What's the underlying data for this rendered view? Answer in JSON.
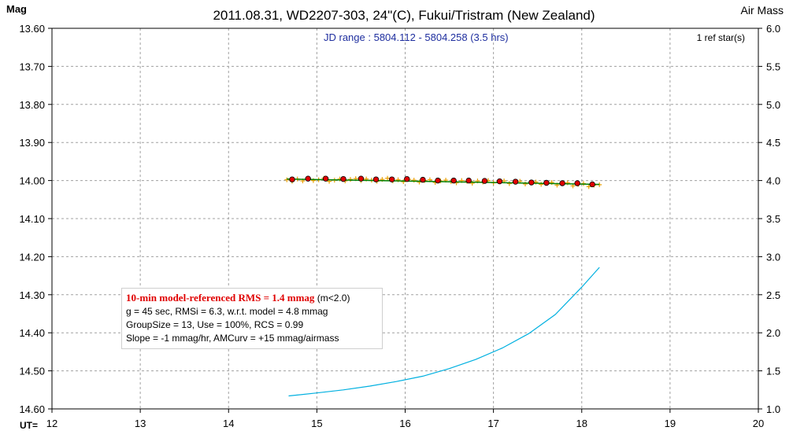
{
  "chart_data": {
    "type": "scatter",
    "title": "2011.08.31, WD2207-303, 24\"(C), Fukui/Tristram (New Zealand)",
    "ylabel": "Mag",
    "y2label": "Air Mass",
    "xlabel": "UT=",
    "subtitle": "JD range : 5804.112 - 5804.258 (3.5 hrs)",
    "ref_stars": "1 ref star(s)",
    "xlim": [
      12,
      20
    ],
    "ylim": [
      14.6,
      13.6
    ],
    "y2lim": [
      1.0,
      6.0
    ],
    "x_ticks": [
      "12",
      "13",
      "14",
      "15",
      "16",
      "17",
      "18",
      "19",
      "20"
    ],
    "y_ticks": [
      "13.60",
      "13.70",
      "13.80",
      "13.90",
      "14.00",
      "14.10",
      "14.20",
      "14.30",
      "14.40",
      "14.50",
      "14.60"
    ],
    "y2_ticks": [
      "6.0",
      "5.5",
      "5.0",
      "4.5",
      "4.0",
      "3.5",
      "3.0",
      "2.5",
      "2.0",
      "1.5",
      "1.0"
    ],
    "grid": true,
    "colors": {
      "raw_points": "#e8a000",
      "binned_points": "#e00000",
      "model_line": "#008000",
      "airmass_curve": "#00b0e0",
      "grid": "#a0a0a0",
      "subtitle": "#00008b"
    },
    "series": [
      {
        "role": "raw",
        "x": [
          14.66,
          14.72,
          14.78,
          14.84,
          14.9,
          14.96,
          15.02,
          15.08,
          15.14,
          15.2,
          15.26,
          15.32,
          15.38,
          15.44,
          15.5,
          15.56,
          15.62,
          15.68,
          15.74,
          15.8,
          15.86,
          15.92,
          15.98,
          16.04,
          16.1,
          16.16,
          16.22,
          16.28,
          16.34,
          16.4,
          16.46,
          16.52,
          16.58,
          16.64,
          16.7,
          16.76,
          16.82,
          16.88,
          16.94,
          17.0,
          17.06,
          17.12,
          17.18,
          17.24,
          17.3,
          17.36,
          17.42,
          17.48,
          17.54,
          17.6,
          17.66,
          17.72,
          17.78,
          17.84,
          17.9,
          17.96,
          18.02,
          18.08,
          18.14,
          18.2
        ],
        "y": [
          13.998,
          14.002,
          13.996,
          14.001,
          13.995,
          14.0,
          13.998,
          13.994,
          14.002,
          13.999,
          13.996,
          14.001,
          13.997,
          13.995,
          14.0,
          13.996,
          13.999,
          14.002,
          13.997,
          13.994,
          14.001,
          13.998,
          14.003,
          13.997,
          13.999,
          14.004,
          14.0,
          13.998,
          14.005,
          14.001,
          13.999,
          14.003,
          14.006,
          14.0,
          14.002,
          14.007,
          14.001,
          14.004,
          14.0,
          14.006,
          14.003,
          14.001,
          14.008,
          14.004,
          14.002,
          14.009,
          14.006,
          14.004,
          14.01,
          14.007,
          14.005,
          14.012,
          14.008,
          14.006,
          14.014,
          14.01,
          14.008,
          14.016,
          14.012,
          14.011
        ]
      },
      {
        "role": "binned",
        "x": [
          14.72,
          14.9,
          15.1,
          15.3,
          15.5,
          15.67,
          15.85,
          16.02,
          16.2,
          16.37,
          16.55,
          16.72,
          16.9,
          17.07,
          17.25,
          17.43,
          17.6,
          17.78,
          17.95,
          18.12
        ],
        "y": [
          13.997,
          13.995,
          13.995,
          13.996,
          13.995,
          13.997,
          13.997,
          13.996,
          13.998,
          14.0,
          14.0,
          14.0,
          14.001,
          14.002,
          14.003,
          14.005,
          14.006,
          14.007,
          14.007,
          14.01
        ]
      },
      {
        "role": "model",
        "x": [
          14.66,
          18.2
        ],
        "y": [
          13.996,
          14.01
        ]
      },
      {
        "role": "airmass",
        "x": [
          14.68,
          15.0,
          15.3,
          15.6,
          15.9,
          16.2,
          16.5,
          16.8,
          17.1,
          17.4,
          17.7,
          18.0,
          18.2
        ],
        "y": [
          1.17,
          1.21,
          1.25,
          1.3,
          1.36,
          1.43,
          1.53,
          1.65,
          1.8,
          1.99,
          2.24,
          2.6,
          2.86
        ]
      }
    ]
  },
  "stats": {
    "rms_head": "10-min model-referenced RMS = 1.4 mmag",
    "rms_tail": " (m<2.0)",
    "line2": "g = 45 sec, RMSi = 6.3, w.r.t. model = 4.8 mmag",
    "line3": "GroupSize = 13, Use = 100%, RCS = 0.99",
    "line4": "Slope = -1 mmag/hr, AMCurv = +15 mmag/airmass"
  }
}
